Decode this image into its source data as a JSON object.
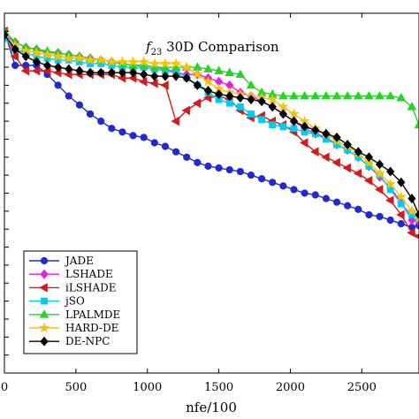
{
  "chart_data": {
    "type": "line",
    "title": {
      "func": "f",
      "sub": "23",
      "rest": " 30D Comparison"
    },
    "xlabel": "nfe/100",
    "ylabel": "",
    "xlim": [
      0,
      2900
    ],
    "ylim": [
      0,
      1
    ],
    "x_ticks": [
      0,
      500,
      1000,
      1500,
      2000,
      2500
    ],
    "x_tick_labels": [
      "0",
      "500",
      "1000",
      "1500",
      "2000",
      "2500"
    ],
    "y_tick_count": 20,
    "grid": false,
    "legend_position": "bottom-left",
    "series": [
      {
        "name": "JADE",
        "color": "#1f2bd1",
        "marker": "circle",
        "fill": true,
        "x": [
          0,
          75,
          150,
          225,
          300,
          375,
          450,
          525,
          600,
          675,
          750,
          825,
          900,
          975,
          1050,
          1125,
          1200,
          1275,
          1350,
          1425,
          1500,
          1575,
          1650,
          1725,
          1800,
          1875,
          1950,
          2025,
          2100,
          2175,
          2250,
          2325,
          2400,
          2475,
          2550,
          2625,
          2700,
          2775,
          2850,
          2900
        ],
        "y": [
          0.95,
          0.855,
          0.855,
          0.855,
          0.83,
          0.8,
          0.77,
          0.745,
          0.72,
          0.7,
          0.68,
          0.67,
          0.66,
          0.655,
          0.64,
          0.63,
          0.615,
          0.6,
          0.585,
          0.575,
          0.57,
          0.565,
          0.56,
          0.55,
          0.54,
          0.53,
          0.52,
          0.51,
          0.5,
          0.495,
          0.485,
          0.475,
          0.465,
          0.455,
          0.44,
          0.435,
          0.425,
          0.415,
          0.405,
          0.41
        ]
      },
      {
        "name": "LSHADE",
        "color": "#e81ae8",
        "marker": "diamond",
        "fill": true,
        "x": [
          0,
          75,
          150,
          225,
          300,
          375,
          450,
          525,
          600,
          675,
          750,
          825,
          900,
          975,
          1050,
          1125,
          1200,
          1275,
          1350,
          1425,
          1500,
          1575,
          1650,
          1725,
          1800,
          1875,
          1950,
          2025,
          2100,
          2175,
          2250,
          2325,
          2400,
          2475,
          2550,
          2625,
          2700,
          2775,
          2850,
          2900
        ],
        "y": [
          0.94,
          0.92,
          0.905,
          0.9,
          0.89,
          0.89,
          0.885,
          0.88,
          0.875,
          0.87,
          0.865,
          0.86,
          0.855,
          0.855,
          0.85,
          0.845,
          0.835,
          0.83,
          0.83,
          0.82,
          0.81,
          0.8,
          0.78,
          0.77,
          0.755,
          0.74,
          0.72,
          0.7,
          0.68,
          0.665,
          0.655,
          0.635,
          0.62,
          0.6,
          0.575,
          0.545,
          0.515,
          0.475,
          0.425,
          0.42
        ]
      },
      {
        "name": "iLSHADE",
        "color": "#d61a1a",
        "marker": "triangle-left",
        "fill": true,
        "x": [
          0,
          75,
          150,
          225,
          300,
          375,
          450,
          525,
          600,
          675,
          750,
          825,
          900,
          975,
          1050,
          1125,
          1200,
          1275,
          1350,
          1425,
          1500,
          1575,
          1650,
          1725,
          1800,
          1875,
          1950,
          2025,
          2100,
          2175,
          2250,
          2325,
          2400,
          2475,
          2550,
          2625,
          2700,
          2775,
          2850,
          2900
        ],
        "y": [
          0.95,
          0.88,
          0.84,
          0.84,
          0.84,
          0.835,
          0.83,
          0.83,
          0.83,
          0.83,
          0.83,
          0.82,
          0.82,
          0.81,
          0.805,
          0.8,
          0.7,
          0.73,
          0.75,
          0.765,
          0.77,
          0.76,
          0.73,
          0.71,
          0.715,
          0.7,
          0.69,
          0.67,
          0.64,
          0.615,
          0.6,
          0.585,
          0.57,
          0.555,
          0.535,
          0.51,
          0.48,
          0.44,
          0.39,
          0.38
        ]
      },
      {
        "name": "jSO",
        "color": "#00ccf0",
        "marker": "square",
        "fill": true,
        "x": [
          0,
          75,
          150,
          225,
          300,
          375,
          450,
          525,
          600,
          675,
          750,
          825,
          900,
          975,
          1050,
          1125,
          1200,
          1275,
          1350,
          1425,
          1500,
          1575,
          1650,
          1725,
          1800,
          1875,
          1950,
          2025,
          2100,
          2175,
          2250,
          2325,
          2400,
          2475,
          2550,
          2625,
          2700,
          2775,
          2850,
          2900
        ],
        "y": [
          0.93,
          0.9,
          0.89,
          0.88,
          0.875,
          0.87,
          0.87,
          0.865,
          0.86,
          0.86,
          0.855,
          0.85,
          0.85,
          0.85,
          0.845,
          0.84,
          0.835,
          0.82,
          0.8,
          0.78,
          0.76,
          0.75,
          0.74,
          0.72,
          0.705,
          0.69,
          0.685,
          0.68,
          0.67,
          0.665,
          0.65,
          0.635,
          0.62,
          0.6,
          0.575,
          0.55,
          0.51,
          0.47,
          0.44,
          0.43
        ]
      },
      {
        "name": "LPALMDE",
        "color": "#22d622",
        "marker": "triangle-up",
        "fill": true,
        "x": [
          0,
          75,
          150,
          225,
          300,
          375,
          450,
          525,
          600,
          675,
          750,
          825,
          900,
          975,
          1050,
          1125,
          1200,
          1275,
          1350,
          1425,
          1500,
          1575,
          1650,
          1725,
          1800,
          1875,
          1950,
          2025,
          2100,
          2175,
          2250,
          2325,
          2400,
          2475,
          2550,
          2625,
          2700,
          2775,
          2850,
          2900
        ],
        "y": [
          0.95,
          0.92,
          0.905,
          0.9,
          0.895,
          0.89,
          0.885,
          0.88,
          0.875,
          0.87,
          0.865,
          0.86,
          0.855,
          0.855,
          0.85,
          0.85,
          0.85,
          0.85,
          0.85,
          0.845,
          0.84,
          0.835,
          0.83,
          0.8,
          0.78,
          0.775,
          0.77,
          0.77,
          0.77,
          0.77,
          0.77,
          0.77,
          0.77,
          0.77,
          0.77,
          0.77,
          0.77,
          0.765,
          0.74,
          0.69
        ]
      },
      {
        "name": "HARD-DE",
        "color": "#f2c40f",
        "marker": "star",
        "fill": true,
        "x": [
          0,
          75,
          150,
          225,
          300,
          375,
          450,
          525,
          600,
          675,
          750,
          825,
          900,
          975,
          1050,
          1125,
          1200,
          1275,
          1350,
          1425,
          1500,
          1575,
          1650,
          1725,
          1800,
          1875,
          1950,
          2025,
          2100,
          2175,
          2250,
          2325,
          2400,
          2475,
          2550,
          2625,
          2700,
          2775,
          2850,
          2900
        ],
        "y": [
          0.94,
          0.91,
          0.895,
          0.89,
          0.885,
          0.88,
          0.875,
          0.875,
          0.87,
          0.87,
          0.865,
          0.865,
          0.865,
          0.865,
          0.86,
          0.86,
          0.86,
          0.85,
          0.83,
          0.81,
          0.79,
          0.78,
          0.775,
          0.77,
          0.765,
          0.76,
          0.74,
          0.72,
          0.7,
          0.68,
          0.665,
          0.645,
          0.63,
          0.61,
          0.585,
          0.555,
          0.525,
          0.49,
          0.45,
          0.43
        ]
      },
      {
        "name": "DE-NPC",
        "color": "#000000",
        "marker": "diamond",
        "fill": true,
        "x": [
          0,
          75,
          150,
          225,
          300,
          375,
          450,
          525,
          600,
          675,
          750,
          825,
          900,
          975,
          1050,
          1125,
          1200,
          1275,
          1350,
          1425,
          1500,
          1575,
          1650,
          1725,
          1800,
          1875,
          1950,
          2025,
          2100,
          2175,
          2250,
          2325,
          2400,
          2475,
          2550,
          2625,
          2700,
          2775,
          2850,
          2900
        ],
        "y": [
          0.94,
          0.9,
          0.88,
          0.865,
          0.855,
          0.85,
          0.845,
          0.84,
          0.835,
          0.835,
          0.835,
          0.835,
          0.835,
          0.83,
          0.825,
          0.825,
          0.825,
          0.82,
          0.8,
          0.785,
          0.775,
          0.77,
          0.765,
          0.76,
          0.755,
          0.74,
          0.72,
          0.7,
          0.685,
          0.675,
          0.665,
          0.655,
          0.635,
          0.615,
          0.6,
          0.58,
          0.56,
          0.53,
          0.485,
          0.44
        ]
      }
    ]
  }
}
